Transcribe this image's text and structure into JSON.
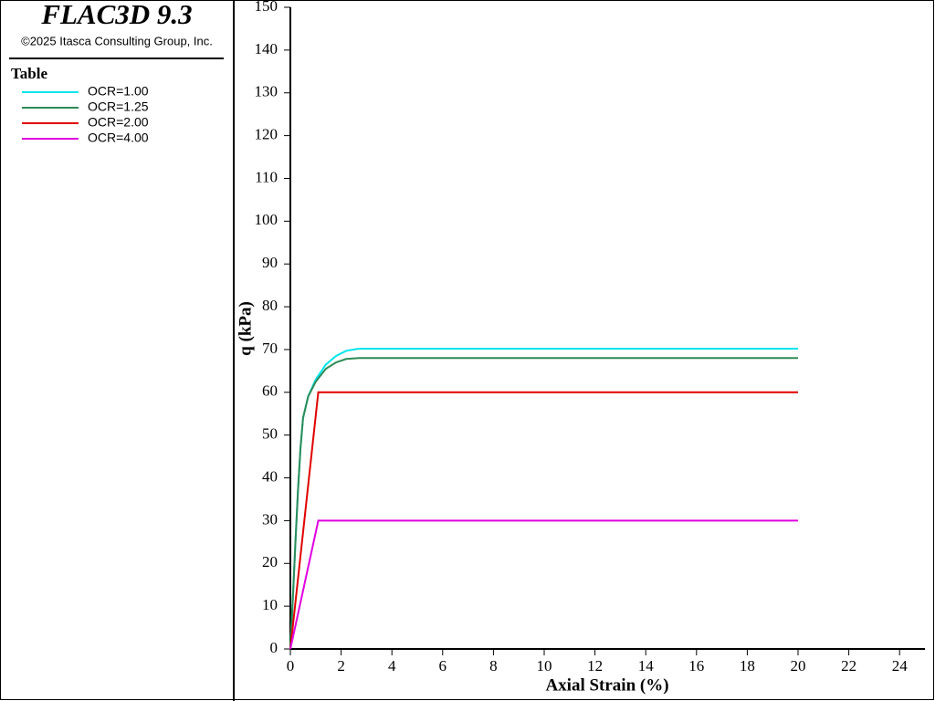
{
  "app_title": "FLAC3D 9.3",
  "copyright": "©2025 Itasca Consulting Group, Inc.",
  "legend_title": "Table",
  "chart_data": {
    "type": "line",
    "xlabel": "Axial Strain (%)",
    "ylabel": "q (kPa)",
    "xlim": [
      0,
      25
    ],
    "xticks": [
      0,
      2,
      4,
      6,
      8,
      10,
      12,
      14,
      16,
      18,
      20,
      22,
      24
    ],
    "ylim": [
      0,
      150
    ],
    "yticks": [
      0,
      10,
      20,
      30,
      40,
      50,
      60,
      70,
      80,
      90,
      100,
      110,
      120,
      130,
      140,
      150
    ],
    "series": [
      {
        "name": "OCR=1.00",
        "color": "#00e5ee",
        "x": [
          0,
          0.1,
          0.2,
          0.3,
          0.4,
          0.5,
          0.7,
          1.0,
          1.4,
          1.8,
          2.2,
          2.7,
          20
        ],
        "values": [
          0,
          12,
          25,
          37,
          47,
          54,
          59,
          63,
          66.5,
          68.5,
          69.7,
          70.2,
          70.2
        ]
      },
      {
        "name": "OCR=1.25",
        "color": "#2e8b57",
        "x": [
          0,
          0.1,
          0.2,
          0.3,
          0.4,
          0.5,
          0.7,
          1.0,
          1.4,
          1.8,
          2.2,
          2.7,
          20
        ],
        "values": [
          0,
          12,
          25,
          37,
          47,
          54,
          59,
          62.5,
          65.5,
          67,
          67.8,
          68,
          68
        ]
      },
      {
        "name": "OCR=2.00",
        "color": "#e00000",
        "x": [
          0,
          1.1,
          20
        ],
        "values": [
          0,
          60,
          60
        ]
      },
      {
        "name": "OCR=4.00",
        "color": "#e000e0",
        "x": [
          0,
          1.1,
          20
        ],
        "values": [
          0,
          30,
          30
        ]
      }
    ]
  }
}
